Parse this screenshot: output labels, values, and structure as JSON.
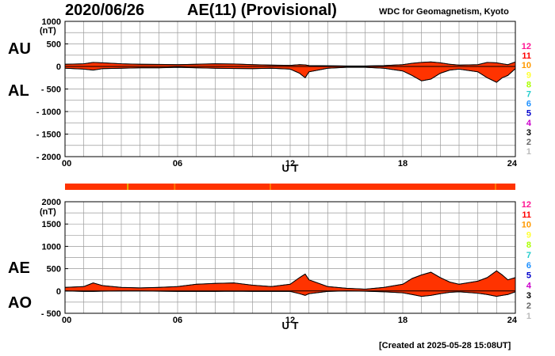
{
  "header": {
    "date": "2020/06/26",
    "title": "AE(11) (Provisional)",
    "credit": "WDC for Geomagnetism, Kyoto"
  },
  "footer": {
    "created": "[Created at 2025-05-28 15:08UT]"
  },
  "legend_levels": [
    "12",
    "11",
    "10",
    "9",
    "8",
    "7",
    "6",
    "5",
    "4",
    "3",
    "2",
    "1"
  ],
  "legend_colors": [
    "#ff1493",
    "#ff0000",
    "#ff9900",
    "#ffff33",
    "#aaff00",
    "#22cccc",
    "#1e90ff",
    "#0000cc",
    "#cc00cc",
    "#000000",
    "#666666",
    "#bbbbbb"
  ],
  "chart_data": [
    {
      "type": "area",
      "panel": "AU/AL",
      "ylabel": "(nT)",
      "xlabel": "U T",
      "upper_series_label": "AU",
      "lower_series_label": "AL",
      "ylim": [
        -2000,
        1000
      ],
      "yticks": [
        1000,
        500,
        0,
        -500,
        -1000,
        -1500,
        -2000
      ],
      "ytick_labels": [
        "1000",
        "500",
        "0",
        "- 500",
        "- 1000",
        "- 1500",
        "- 2000"
      ],
      "xlim": [
        0,
        24
      ],
      "xticks": [
        0,
        6,
        12,
        18,
        24
      ],
      "xtick_labels": [
        "00",
        "06",
        "12",
        "18",
        "24"
      ],
      "grid": true,
      "fill_color": "#ff3300",
      "x": [
        0,
        1,
        1.5,
        2,
        3,
        4,
        5,
        6,
        7,
        8,
        9,
        10,
        11,
        12,
        12.5,
        12.8,
        13,
        14,
        15,
        16,
        17,
        18,
        18.5,
        19,
        19.5,
        20,
        20.5,
        21,
        22,
        22.5,
        23,
        23.3,
        23.6,
        24
      ],
      "upper": [
        50,
        60,
        90,
        80,
        60,
        50,
        45,
        40,
        50,
        60,
        55,
        40,
        30,
        25,
        40,
        35,
        20,
        15,
        10,
        10,
        20,
        40,
        70,
        90,
        100,
        80,
        50,
        30,
        40,
        90,
        80,
        60,
        40,
        100
      ],
      "lower": [
        -40,
        -60,
        -80,
        -50,
        -40,
        -30,
        -30,
        -20,
        -30,
        -40,
        -45,
        -50,
        -40,
        -60,
        -150,
        -250,
        -120,
        -40,
        -20,
        -20,
        -40,
        -100,
        -200,
        -320,
        -280,
        -150,
        -80,
        -60,
        -120,
        -250,
        -350,
        -250,
        -200,
        -50
      ]
    },
    {
      "type": "area",
      "panel": "AE/AO",
      "ylabel": "(nT)",
      "xlabel": "U T",
      "upper_series_label": "AE",
      "lower_series_label": "AO",
      "ylim": [
        -500,
        2000
      ],
      "yticks": [
        2000,
        1500,
        1000,
        500,
        0,
        -500
      ],
      "ytick_labels": [
        "2000",
        "1500",
        "1000",
        "500",
        "0",
        "- 500"
      ],
      "xlim": [
        0,
        24
      ],
      "xticks": [
        0,
        6,
        12,
        18,
        24
      ],
      "xtick_labels": [
        "00",
        "06",
        "12",
        "18",
        "24"
      ],
      "grid": true,
      "fill_color": "#ff3300",
      "x": [
        0,
        1,
        1.5,
        2,
        3,
        4,
        5,
        6,
        7,
        8,
        9,
        10,
        11,
        12,
        12.5,
        12.8,
        13,
        14,
        15,
        16,
        17,
        18,
        18.5,
        19,
        19.5,
        20,
        20.5,
        21,
        22,
        22.5,
        23,
        23.3,
        23.6,
        24
      ],
      "upper": [
        80,
        100,
        180,
        120,
        80,
        70,
        80,
        100,
        150,
        170,
        180,
        130,
        100,
        150,
        300,
        380,
        250,
        100,
        60,
        40,
        80,
        150,
        280,
        360,
        420,
        300,
        200,
        150,
        220,
        300,
        450,
        360,
        250,
        300
      ],
      "lower": [
        0,
        -10,
        -10,
        -5,
        0,
        0,
        -5,
        -10,
        -10,
        -10,
        -5,
        -10,
        -10,
        -10,
        -60,
        -100,
        -60,
        -10,
        0,
        -5,
        -20,
        -40,
        -80,
        -120,
        -100,
        -60,
        -30,
        -20,
        -50,
        -80,
        -120,
        -100,
        -80,
        -20
      ]
    }
  ],
  "activity_bar": {
    "base_color": "#ff3300",
    "markers": [
      {
        "hour": 3.3,
        "color": "#e0b000"
      },
      {
        "hour": 5.8,
        "color": "#ff7700"
      },
      {
        "hour": 10.9,
        "color": "#ff7700"
      },
      {
        "hour": 22.9,
        "color": "#ff7700"
      }
    ]
  }
}
